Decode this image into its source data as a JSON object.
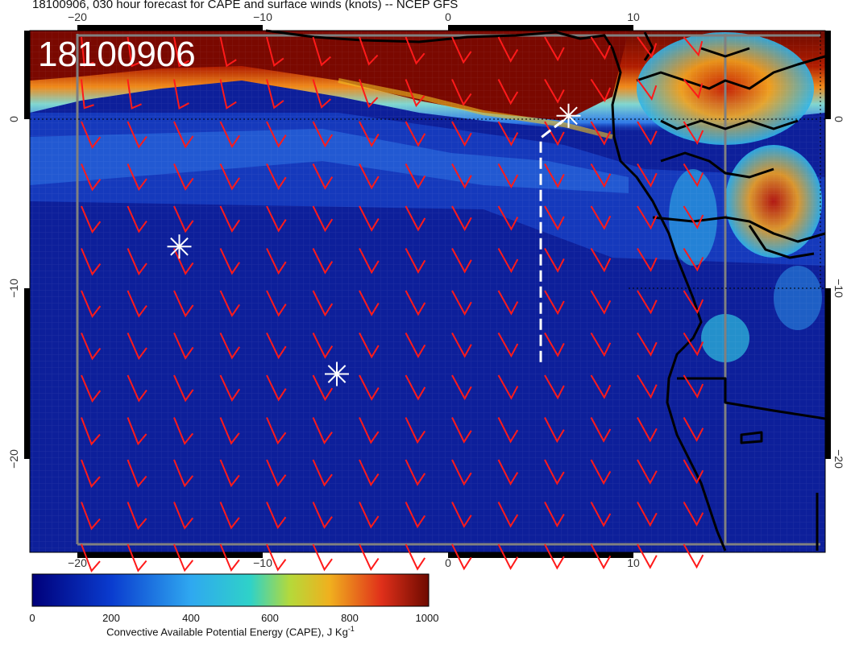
{
  "title": "18100906, 030 hour forecast for CAPE and surface winds (knots) -- NCEP GFS",
  "stamp": "18100906",
  "x_ticks": [
    "−20",
    "−10",
    "0",
    "10"
  ],
  "y_ticks": [
    "0",
    "−10",
    "−20"
  ],
  "colorbar": {
    "ticks": [
      "0",
      "200",
      "400",
      "600",
      "800",
      "1000"
    ],
    "title": "Convective Available Potential Energy (CAPE), J Kg",
    "title_sup": "-1",
    "colors": [
      "#00007a",
      "#0a3ccf",
      "#2f9ff0",
      "#2fd2c8",
      "#b5d93a",
      "#f0b01e",
      "#e0301a",
      "#6e0a00"
    ]
  },
  "colors": {
    "ocean": "#0d1f9a",
    "barbs": "#ff1a1a",
    "coast": "#000000",
    "markers": "#ffffff",
    "frame": "#808080"
  },
  "markers": [
    {
      "name": "marker-west",
      "lon": -14.5,
      "lat": -7.5
    },
    {
      "name": "marker-center",
      "lon": -6,
      "lat": -15
    },
    {
      "name": "marker-north-east",
      "lon": 6.5,
      "lat": 0.2
    }
  ],
  "track": [
    {
      "lon": 5,
      "lat": -14.3
    },
    {
      "lon": 5,
      "lat": -1.1
    },
    {
      "lon": 6.3,
      "lat": 0
    }
  ],
  "map_extent": {
    "lon_min": -22.5,
    "lon_max": 20,
    "lat_min": -24.5,
    "lat_max": 4.6
  }
}
